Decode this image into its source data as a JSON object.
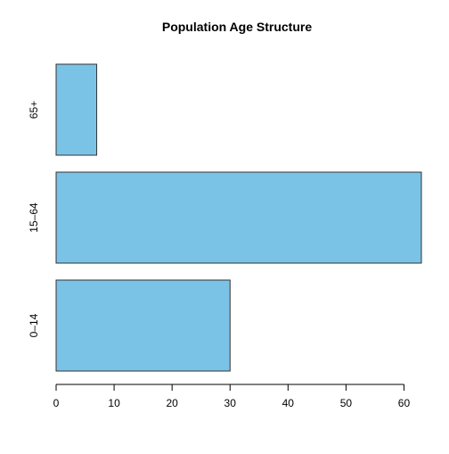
{
  "chart_data": {
    "type": "bar",
    "orientation": "horizontal",
    "title": "Population Age Structure",
    "xlabel": "",
    "ylabel": "",
    "categories": [
      "0–14",
      "15–64",
      "65+"
    ],
    "values": [
      30,
      63,
      7
    ],
    "xlim": [
      0,
      63
    ],
    "x_ticks": [
      0,
      10,
      20,
      30,
      40,
      50,
      60
    ],
    "grid": false,
    "legend": "none",
    "bar_color": "#7bc3e6",
    "bar_border_color": "#333333"
  }
}
